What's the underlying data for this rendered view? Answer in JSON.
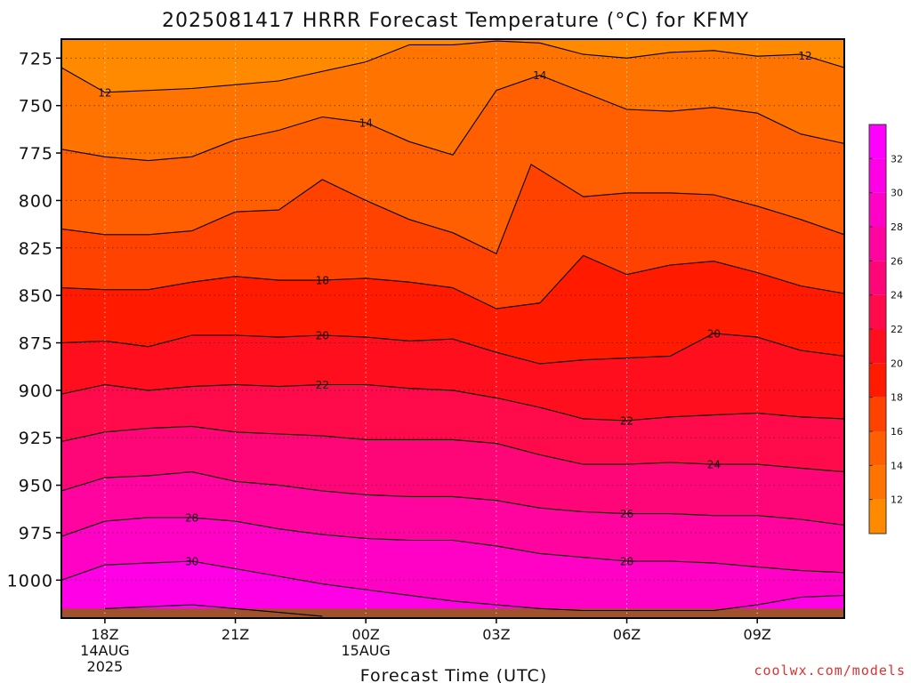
{
  "chart_data": {
    "type": "filled-contour",
    "title": "2025081417 HRRR Forecast Temperature (°C) for KFMY",
    "xlabel": "Forecast Time (UTC)",
    "ylabel": "",
    "credit": "coolwx.com/models",
    "y_axis": {
      "ticks": [
        725,
        750,
        775,
        800,
        825,
        850,
        875,
        900,
        925,
        950,
        975,
        1000
      ],
      "range": [
        715,
        1020
      ],
      "inverted": true
    },
    "x_axis": {
      "range": [
        -1,
        17
      ],
      "ticks": [
        {
          "hour": 0,
          "label": "18Z",
          "sub": [
            "14AUG",
            "2025"
          ]
        },
        {
          "hour": 3,
          "label": "21Z",
          "sub": []
        },
        {
          "hour": 6,
          "label": "00Z",
          "sub": [
            "15AUG"
          ]
        },
        {
          "hour": 9,
          "label": "03Z",
          "sub": []
        },
        {
          "hour": 12,
          "label": "06Z",
          "sub": []
        },
        {
          "hour": 15,
          "label": "09Z",
          "sub": []
        }
      ]
    },
    "grid": true,
    "colorbar": {
      "ticks": [
        12,
        14,
        16,
        18,
        20,
        22,
        24,
        26,
        28,
        30,
        32
      ],
      "colors": [
        "#FF8A00",
        "#FF7400",
        "#FF5F00",
        "#FF4200",
        "#FF1A00",
        "#FF0F1E",
        "#FF0A4B",
        "#FF0678",
        "#FF049F",
        "#FF02C5",
        "#FF00E6",
        "#FF00FF"
      ]
    },
    "contours": [
      {
        "level": 12,
        "label_hours": [
          0,
          16.1
        ],
        "x": [
          -1,
          0,
          2,
          4,
          6,
          7,
          8,
          8.5,
          9,
          10,
          11,
          12,
          13,
          14,
          15,
          16,
          17
        ],
        "y": [
          730,
          743,
          741,
          737,
          727,
          718,
          718,
          717,
          716,
          717,
          723,
          725,
          722,
          721,
          724,
          723,
          730
        ]
      },
      {
        "level": 14,
        "label_hours": [
          6,
          10
        ],
        "x": [
          -1,
          0,
          1,
          2,
          3,
          4,
          5,
          6,
          7,
          8,
          9,
          10,
          11,
          12,
          13,
          14,
          15,
          16,
          17
        ],
        "y": [
          773,
          777,
          779,
          777,
          768,
          763,
          756,
          759,
          769,
          776,
          742,
          734,
          743,
          752,
          753,
          751,
          754,
          765,
          770
        ]
      },
      {
        "level": 16,
        "label_hours": [],
        "x": [
          -1,
          0,
          1,
          2,
          3,
          4,
          5,
          6,
          7,
          8,
          9,
          9.8,
          11,
          12,
          13,
          14,
          15,
          16,
          17
        ],
        "y": [
          815,
          818,
          818,
          816,
          806,
          805,
          789,
          800,
          810,
          817,
          828,
          781,
          798,
          796,
          796,
          797,
          803,
          810,
          818
        ]
      },
      {
        "level": 18,
        "label_hours": [
          5
        ],
        "x": [
          -1,
          0,
          1,
          2,
          3,
          4,
          5,
          6,
          7,
          8,
          9,
          10,
          11,
          12,
          13,
          14,
          15,
          16,
          17
        ],
        "y": [
          846,
          847,
          847,
          843,
          840,
          842,
          842,
          841,
          843,
          846,
          857,
          854,
          829,
          839,
          834,
          832,
          838,
          845,
          849
        ]
      },
      {
        "level": 20,
        "label_hours": [
          5,
          14
        ],
        "x": [
          -1,
          0,
          1,
          2,
          3,
          4,
          5,
          6,
          7,
          8,
          9,
          10,
          11,
          12,
          13,
          14,
          15,
          16,
          17
        ],
        "y": [
          875,
          874,
          877,
          871,
          871,
          872,
          871,
          872,
          874,
          873,
          880,
          886,
          884,
          883,
          882,
          870,
          872,
          879,
          882
        ]
      },
      {
        "level": 22,
        "label_hours": [
          5,
          12
        ],
        "x": [
          -1,
          0,
          1,
          2,
          3,
          4,
          5,
          6,
          7,
          8,
          9,
          10,
          11,
          12,
          13,
          14,
          15,
          16,
          17
        ],
        "y": [
          902,
          897,
          900,
          898,
          897,
          898,
          897,
          897,
          899,
          900,
          904,
          909,
          915,
          916,
          914,
          913,
          912,
          914,
          915
        ]
      },
      {
        "level": 24,
        "label_hours": [
          14
        ],
        "x": [
          -1,
          0,
          1,
          2,
          3,
          4,
          5,
          6,
          7,
          8,
          9,
          10,
          11,
          12,
          13,
          14,
          15,
          16,
          17
        ],
        "y": [
          927,
          922,
          920,
          919,
          922,
          923,
          924,
          926,
          926,
          926,
          928,
          934,
          939,
          939,
          938,
          939,
          939,
          941,
          943
        ]
      },
      {
        "level": 26,
        "label_hours": [
          12
        ],
        "x": [
          -1,
          0,
          1,
          2,
          3,
          4,
          5,
          6,
          7,
          8,
          9,
          10,
          11,
          12,
          13,
          14,
          15,
          16,
          17
        ],
        "y": [
          953,
          946,
          945,
          943,
          948,
          950,
          953,
          955,
          956,
          956,
          958,
          962,
          964,
          965,
          965,
          966,
          966,
          968,
          971
        ]
      },
      {
        "level": 28,
        "label_hours": [
          2,
          12
        ],
        "x": [
          -1,
          0,
          1,
          2,
          3,
          4,
          5,
          6,
          7,
          8,
          9,
          10,
          11,
          12,
          13,
          14,
          15,
          16,
          17
        ],
        "y": [
          977,
          969,
          967,
          967,
          969,
          973,
          976,
          978,
          979,
          979,
          982,
          986,
          988,
          990,
          990,
          991,
          993,
          995,
          996
        ]
      },
      {
        "level": 30,
        "label_hours": [
          2
        ],
        "x": [
          -1,
          0,
          1,
          2,
          3,
          4,
          5,
          6,
          7,
          8,
          9,
          10,
          11,
          12,
          13,
          14,
          15,
          16,
          17
        ],
        "y": [
          1000,
          992,
          991,
          990,
          994,
          998,
          1002,
          1005,
          1008,
          1011,
          1013,
          1015,
          1016,
          1016,
          1016,
          1016,
          1013,
          1009,
          1008
        ]
      },
      {
        "level": 32,
        "label_hours": [],
        "x": [
          0,
          1,
          2,
          3,
          4,
          5
        ],
        "y": [
          1015,
          1014,
          1013,
          1015,
          1017,
          1019
        ]
      }
    ],
    "surface": {
      "pressure": 1015,
      "color": "#A0522D"
    }
  }
}
